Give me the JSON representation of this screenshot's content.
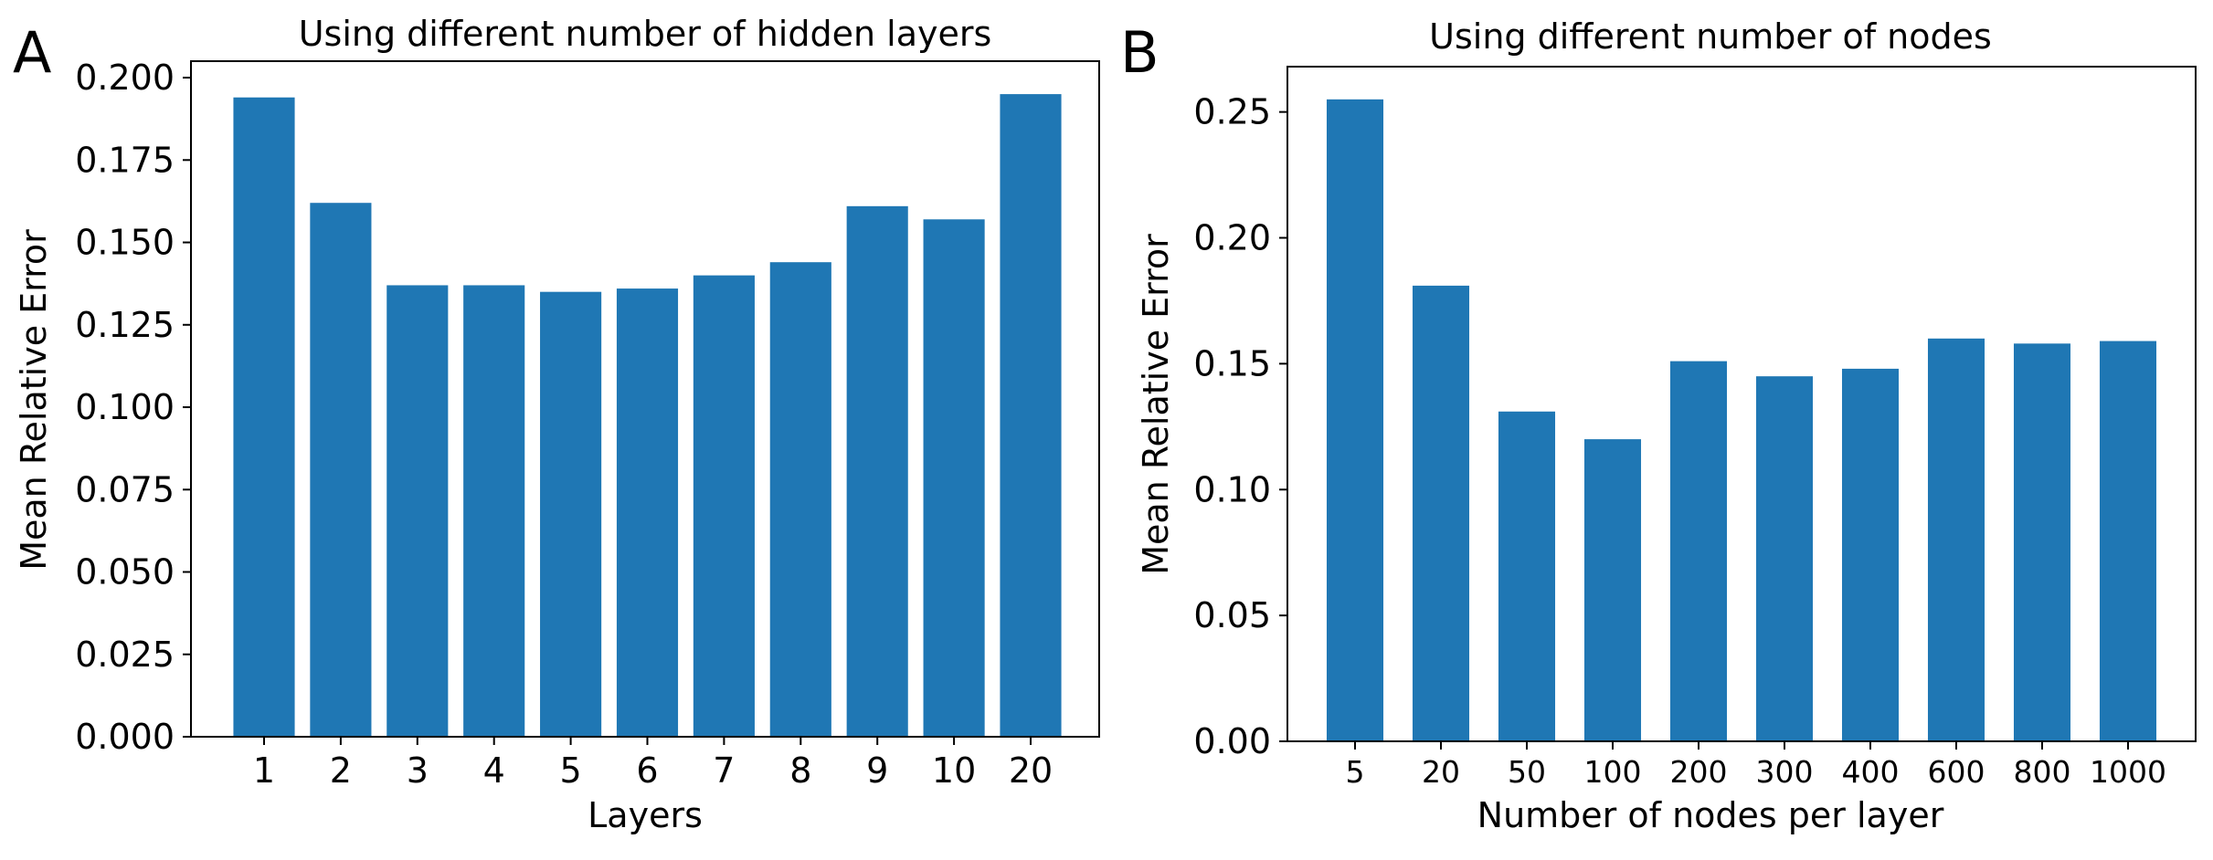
{
  "figure": {
    "panel_letters": [
      "A",
      "B"
    ]
  },
  "chart_data": [
    {
      "type": "bar",
      "panel": "A",
      "title": "Using different number of hidden layers",
      "xlabel": "Layers",
      "ylabel": "Mean Relative Error",
      "categories": [
        "1",
        "2",
        "3",
        "4",
        "5",
        "6",
        "7",
        "8",
        "9",
        "10",
        "20"
      ],
      "values": [
        0.194,
        0.162,
        0.137,
        0.137,
        0.135,
        0.136,
        0.14,
        0.144,
        0.161,
        0.157,
        0.195
      ],
      "ylim": [
        0,
        0.205
      ],
      "yticks": [
        0.0,
        0.025,
        0.05,
        0.075,
        0.1,
        0.125,
        0.15,
        0.175,
        0.2
      ],
      "ytick_labels": [
        "0.000",
        "0.025",
        "0.050",
        "0.075",
        "0.100",
        "0.125",
        "0.150",
        "0.175",
        "0.200"
      ],
      "bar_color": "#1f77b4",
      "grid": false,
      "legend": "none"
    },
    {
      "type": "bar",
      "panel": "B",
      "title": "Using different number of nodes",
      "xlabel": "Number of nodes per layer",
      "ylabel": "Mean Relative Error",
      "categories": [
        "5",
        "20",
        "50",
        "100",
        "200",
        "300",
        "400",
        "600",
        "800",
        "1000"
      ],
      "values": [
        0.255,
        0.181,
        0.131,
        0.12,
        0.151,
        0.145,
        0.148,
        0.16,
        0.158,
        0.159
      ],
      "ylim": [
        0,
        0.268
      ],
      "yticks": [
        0.0,
        0.05,
        0.1,
        0.15,
        0.2,
        0.25
      ],
      "ytick_labels": [
        "0.00",
        "0.05",
        "0.10",
        "0.15",
        "0.20",
        "0.25"
      ],
      "bar_color": "#1f77b4",
      "grid": false,
      "legend": "none"
    }
  ]
}
